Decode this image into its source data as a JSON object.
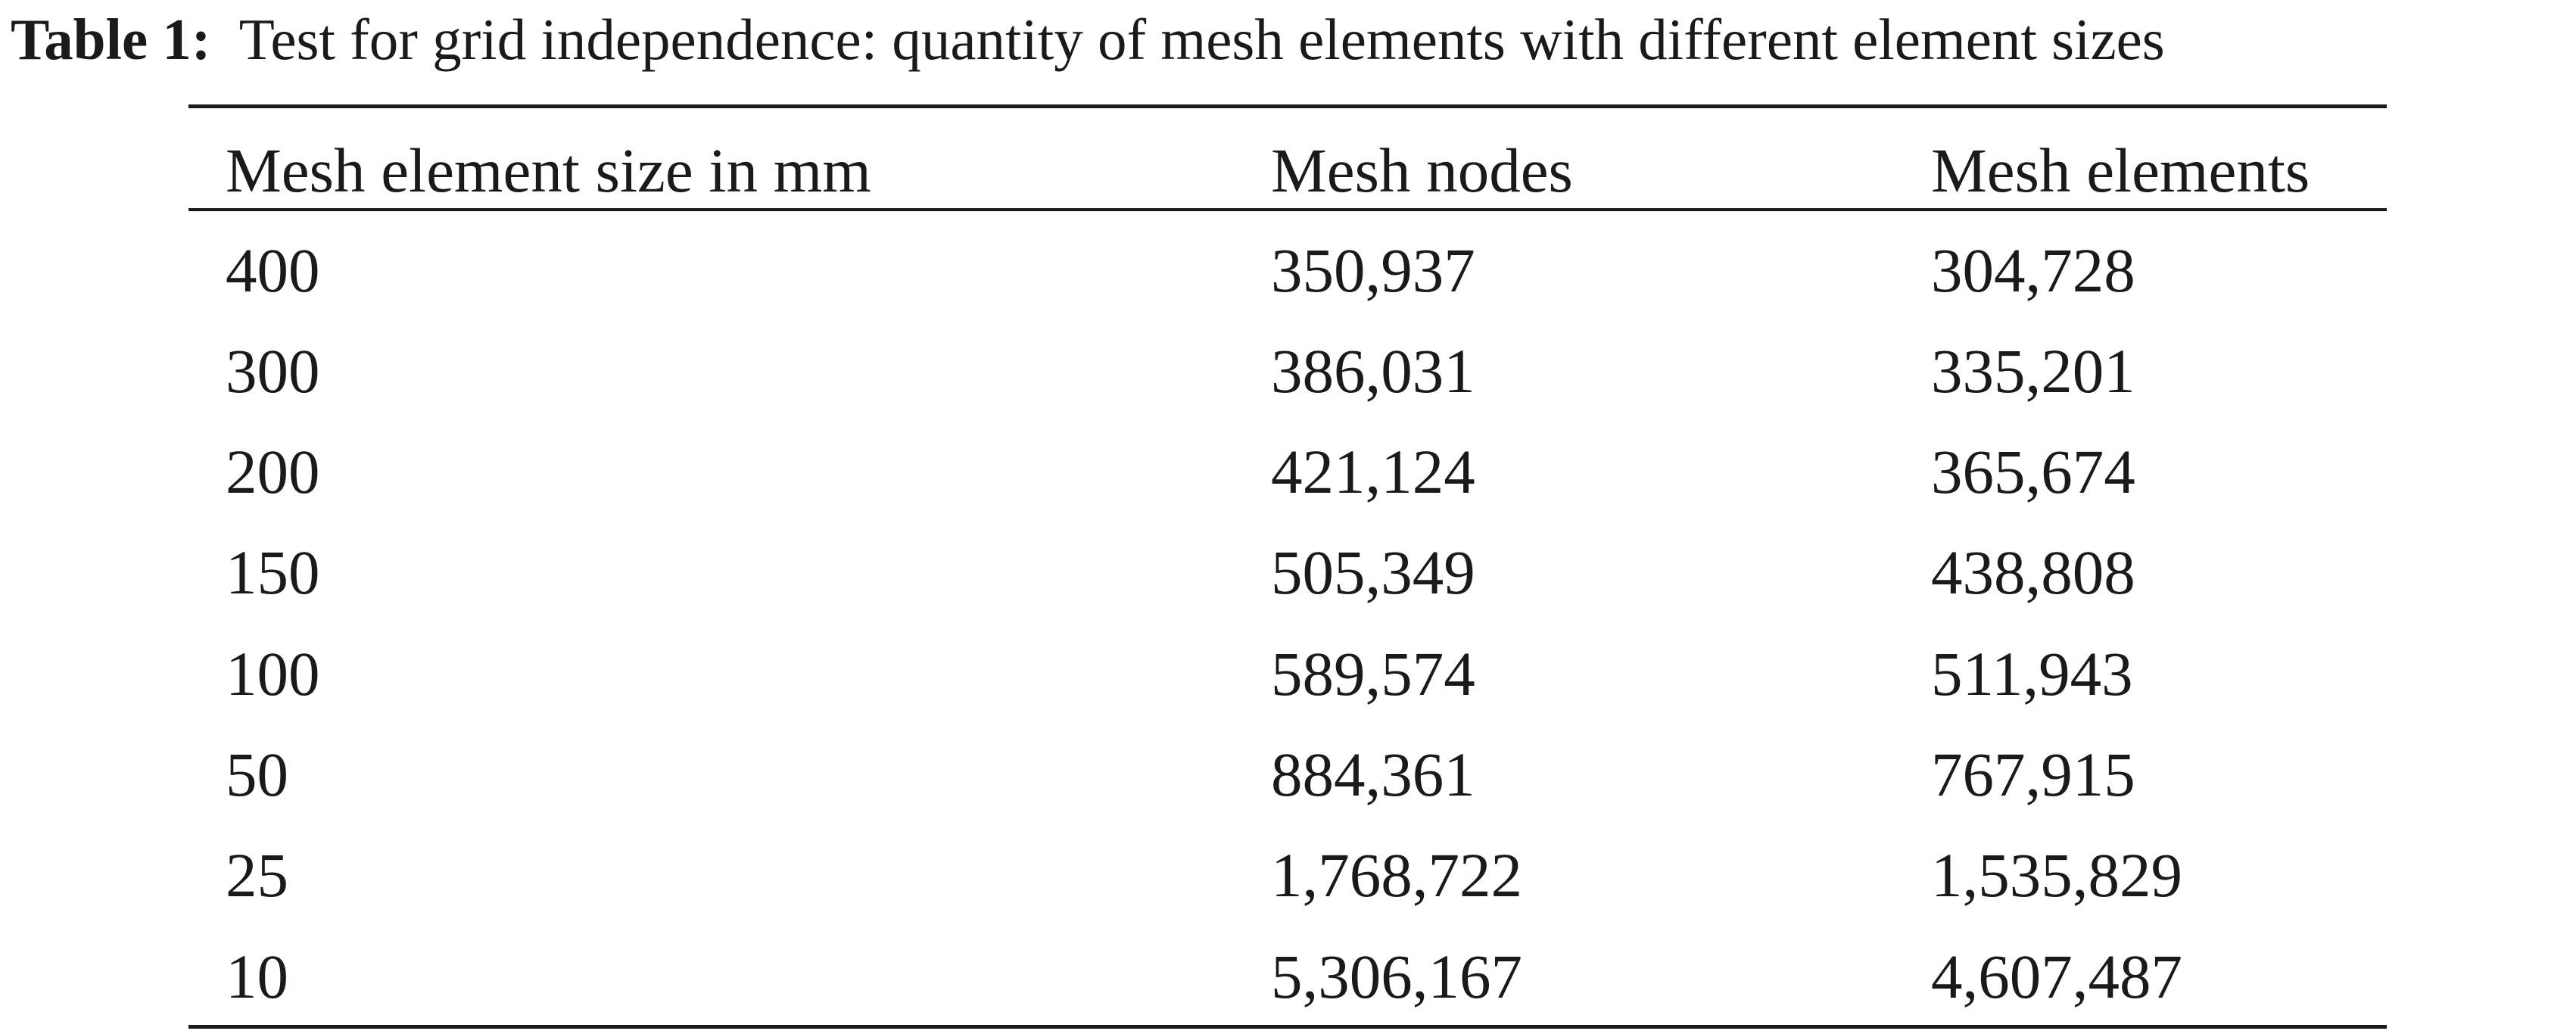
{
  "caption": {
    "label": "Table 1:",
    "text": "Test for grid independence: quantity of mesh elements with different element sizes"
  },
  "table": {
    "headers": [
      "Mesh element size in mm",
      "Mesh nodes",
      "Mesh elements"
    ],
    "rows": [
      [
        "400",
        "350,937",
        "304,728"
      ],
      [
        "300",
        "386,031",
        "335,201"
      ],
      [
        "200",
        "421,124",
        "365,674"
      ],
      [
        "150",
        "505,349",
        "438,808"
      ],
      [
        "100",
        "589,574",
        "511,943"
      ],
      [
        "50",
        "884,361",
        "767,915"
      ],
      [
        "25",
        "1,768,722",
        "1,535,829"
      ],
      [
        "10",
        "5,306,167",
        "4,607,487"
      ]
    ]
  }
}
